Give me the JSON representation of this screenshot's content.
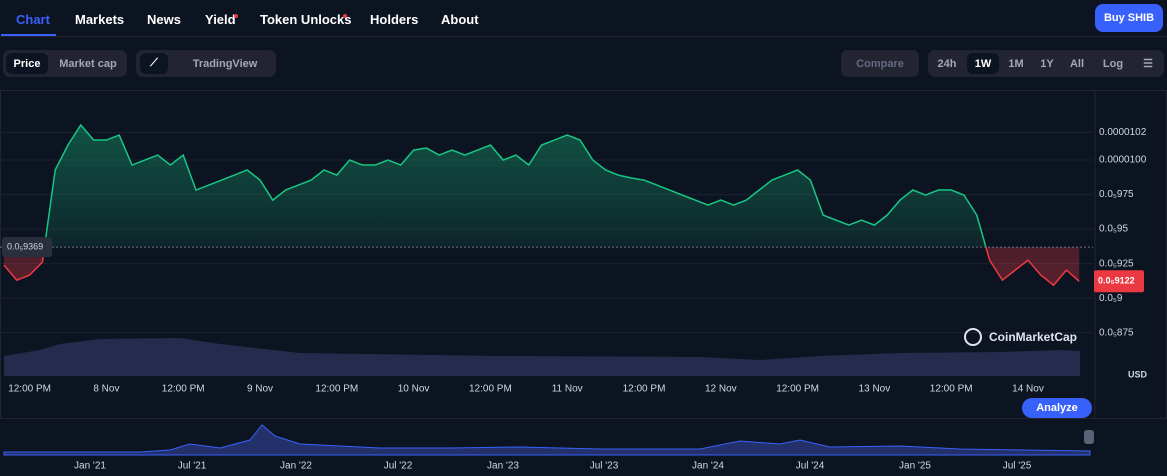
{
  "nav": {
    "tabs": [
      "Chart",
      "Markets",
      "News",
      "Yield",
      "Token Unlocks",
      "Holders",
      "About"
    ],
    "buy": "Buy SHIB"
  },
  "controls": {
    "metric": [
      "Price",
      "Market cap"
    ],
    "tradingview": "TradingView",
    "compare": "Compare",
    "ranges": [
      "24h",
      "1W",
      "1M",
      "1Y",
      "All",
      "Log"
    ]
  },
  "chart_data": {
    "type": "line",
    "currency": "USD",
    "watermark": "CoinMarketCap",
    "analyze": "Analyze",
    "categories": [
      null,
      null,
      "12:00 PM",
      null,
      null,
      null,
      null,
      null,
      "8 Nov",
      null,
      null,
      null,
      null,
      null,
      "12:00 PM",
      null,
      null,
      null,
      null,
      null,
      "9 Nov",
      null,
      null,
      null,
      null,
      null,
      "12:00 PM",
      null,
      null,
      null,
      null,
      null,
      "10 Nov",
      null,
      null,
      null,
      null,
      null,
      "12:00 PM",
      null,
      null,
      null,
      null,
      null,
      "11 Nov",
      null,
      null,
      null,
      null,
      null,
      "12:00 PM",
      null,
      null,
      null,
      null,
      null,
      "12 Nov",
      null,
      null,
      null,
      null,
      null,
      "12:00 PM",
      null,
      null,
      null,
      null,
      null,
      "13 Nov",
      null,
      null,
      null,
      null,
      null,
      "12:00 PM",
      null,
      null,
      null,
      null,
      null,
      "14 Nov",
      null,
      null,
      null,
      null
    ],
    "values": [
      9.239e-06,
      9.13e-06,
      9.167e-06,
      9.261e-06,
      9.928e-06,
      1.0109e-05,
      1.0254e-05,
      1.0145e-05,
      1.0145e-05,
      1.0181e-05,
      9.964e-06,
      1e-05,
      1.0036e-05,
      9.964e-06,
      1.0036e-05,
      9.783e-06,
      9.819e-06,
      9.855e-06,
      9.891e-06,
      9.928e-06,
      9.855e-06,
      9.71e-06,
      9.783e-06,
      9.819e-06,
      9.855e-06,
      9.928e-06,
      9.891e-06,
      1e-05,
      9.964e-06,
      9.964e-06,
      1e-05,
      9.964e-06,
      1.0072e-05,
      1.0087e-05,
      1.0036e-05,
      1.0072e-05,
      1.0036e-05,
      1.0072e-05,
      1.0109e-05,
      1e-05,
      1.0036e-05,
      9.964e-06,
      1.0109e-05,
      1.0145e-05,
      1.0181e-05,
      1.0145e-05,
      1e-05,
      9.928e-06,
      9.891e-06,
      9.87e-06,
      9.855e-06,
      9.819e-06,
      9.783e-06,
      9.746e-06,
      9.71e-06,
      9.674e-06,
      9.71e-06,
      9.674e-06,
      9.71e-06,
      9.783e-06,
      9.855e-06,
      9.891e-06,
      9.928e-06,
      9.855e-06,
      9.601e-06,
      9.565e-06,
      9.529e-06,
      9.565e-06,
      9.529e-06,
      9.601e-06,
      9.71e-06,
      9.783e-06,
      9.746e-06,
      9.783e-06,
      9.783e-06,
      9.746e-06,
      9.601e-06,
      9.275e-06,
      9.13e-06,
      9.203e-06,
      9.275e-06,
      9.167e-06,
      9.094e-06,
      9.203e-06,
      9.122e-06
    ],
    "colors": {
      "up": "#16c784",
      "down": "#ea3943"
    },
    "open_price": {
      "value": 9.369e-06,
      "label": "0.0₅9369"
    },
    "last_price": {
      "value": 9.122e-06,
      "label": "0.0₅9122"
    },
    "ylim": [
      8.4e-06,
      1.05e-05
    ],
    "yticks": [
      {
        "value": 1.02e-05,
        "label": "0.0000102"
      },
      {
        "value": 1e-05,
        "label": "0.0000100"
      },
      {
        "value": 9.75e-06,
        "label": "0.0₅975"
      },
      {
        "value": 9.5e-06,
        "label": "0.0₅95"
      },
      {
        "value": 9.25e-06,
        "label": "0.0₅925"
      },
      {
        "value": 9e-06,
        "label": "0.0₅9"
      },
      {
        "value": 8.75e-06,
        "label": "0.0₅875"
      }
    ],
    "grid": true
  },
  "navigator": {
    "labels": [
      "Jan '21",
      "Jul '21",
      "Jan '22",
      "Jul '22",
      "Jan '23",
      "Jul '23",
      "Jan '24",
      "Jul '24",
      "Jan '25",
      "Jul '25"
    ]
  }
}
